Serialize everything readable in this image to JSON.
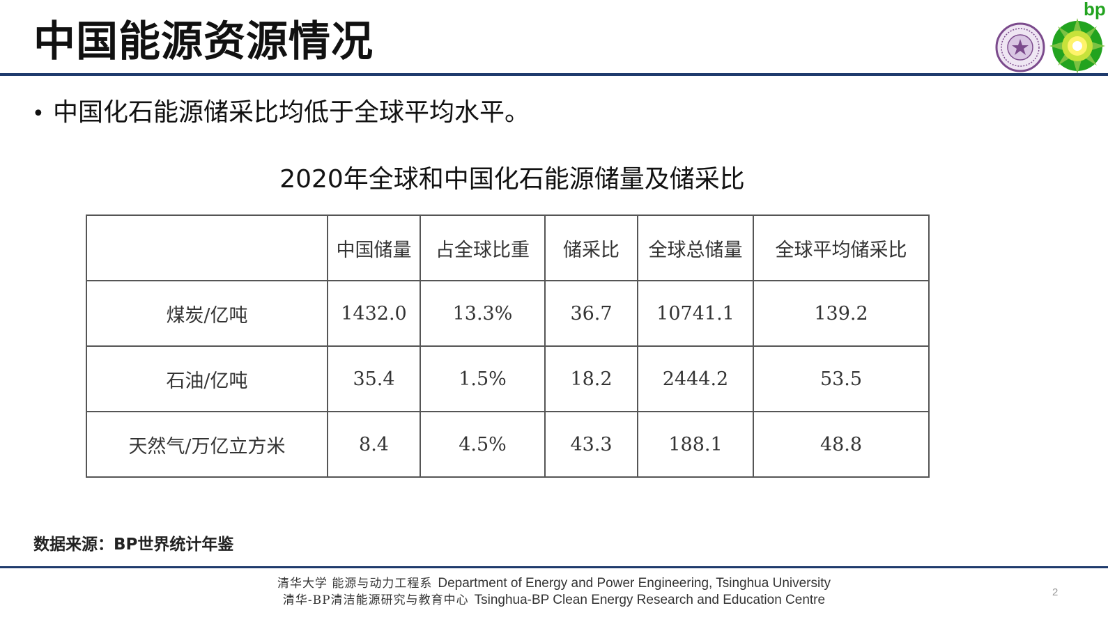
{
  "slide": {
    "title": "中国能源资源情况",
    "bullet": "中国化石能源储采比均低于全球平均水平。",
    "table_caption": "2020年全球和中国化石能源储量及储采比",
    "source": "数据来源：BP世界统计年鉴",
    "page_number": "2"
  },
  "logos": {
    "bp_text": "bp",
    "bp_color": "#22a31f",
    "tsinghua_color": "#7b4a8c"
  },
  "table": {
    "headers": [
      "",
      "中国储量",
      "占全球比重",
      "储采比",
      "全球总储量",
      "全球平均储采比"
    ],
    "rows": [
      [
        "煤炭/亿吨",
        "1432.0",
        "13.3%",
        "36.7",
        "10741.1",
        "139.2"
      ],
      [
        "石油/亿吨",
        "35.4",
        "1.5%",
        "18.2",
        "2444.2",
        "53.5"
      ],
      [
        "天然气/万亿立方米",
        "8.4",
        "4.5%",
        "43.3",
        "188.1",
        "48.8"
      ]
    ]
  },
  "footer": {
    "line1_cn": "清华大学 能源与动力工程系",
    "line1_en": "Department of Energy and Power Engineering, Tsinghua University",
    "line2_cn": "清华-BP清洁能源研究与教育中心",
    "line2_en": "Tsinghua-BP Clean Energy Research and Education Centre"
  },
  "colors": {
    "rule": "#1f3b6d"
  }
}
